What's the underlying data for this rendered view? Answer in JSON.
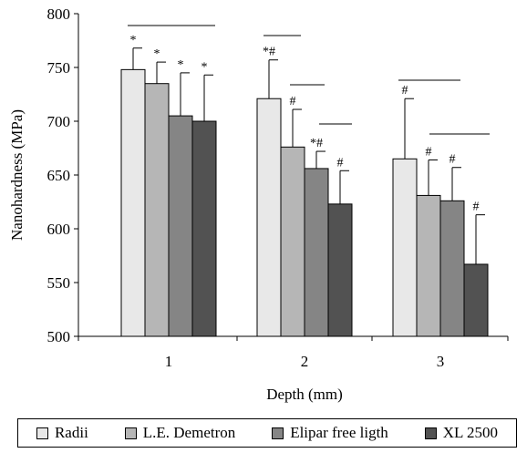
{
  "chart_data": {
    "type": "bar",
    "title": "",
    "xlabel": "Depth (mm)",
    "ylabel": "Nanohardness (MPa)",
    "ylim": [
      500,
      800
    ],
    "yticks": [
      500,
      550,
      600,
      650,
      700,
      750,
      800
    ],
    "categories": [
      "1",
      "2",
      "3"
    ],
    "legend_position": "bottom",
    "grid": false,
    "series": [
      {
        "name": "Radii",
        "color": "#e8e8e8",
        "values": [
          748,
          721,
          665
        ],
        "error": [
          20,
          36,
          56
        ],
        "annotations": [
          "*",
          "*#",
          "#"
        ]
      },
      {
        "name": "L.E. Demetron",
        "color": "#b6b6b6",
        "values": [
          735,
          676,
          631
        ],
        "error": [
          20,
          35,
          33
        ],
        "annotations": [
          "*",
          "#",
          "#"
        ]
      },
      {
        "name": "Elipar free ligth",
        "color": "#858585",
        "values": [
          705,
          656,
          626
        ],
        "error": [
          40,
          16,
          31
        ],
        "annotations": [
          "*",
          "*#",
          "#"
        ]
      },
      {
        "name": "XL 2500",
        "color": "#525252",
        "values": [
          700,
          623,
          567
        ],
        "error": [
          43,
          31,
          46
        ],
        "annotations": [
          "*",
          "#",
          "#"
        ]
      }
    ]
  }
}
